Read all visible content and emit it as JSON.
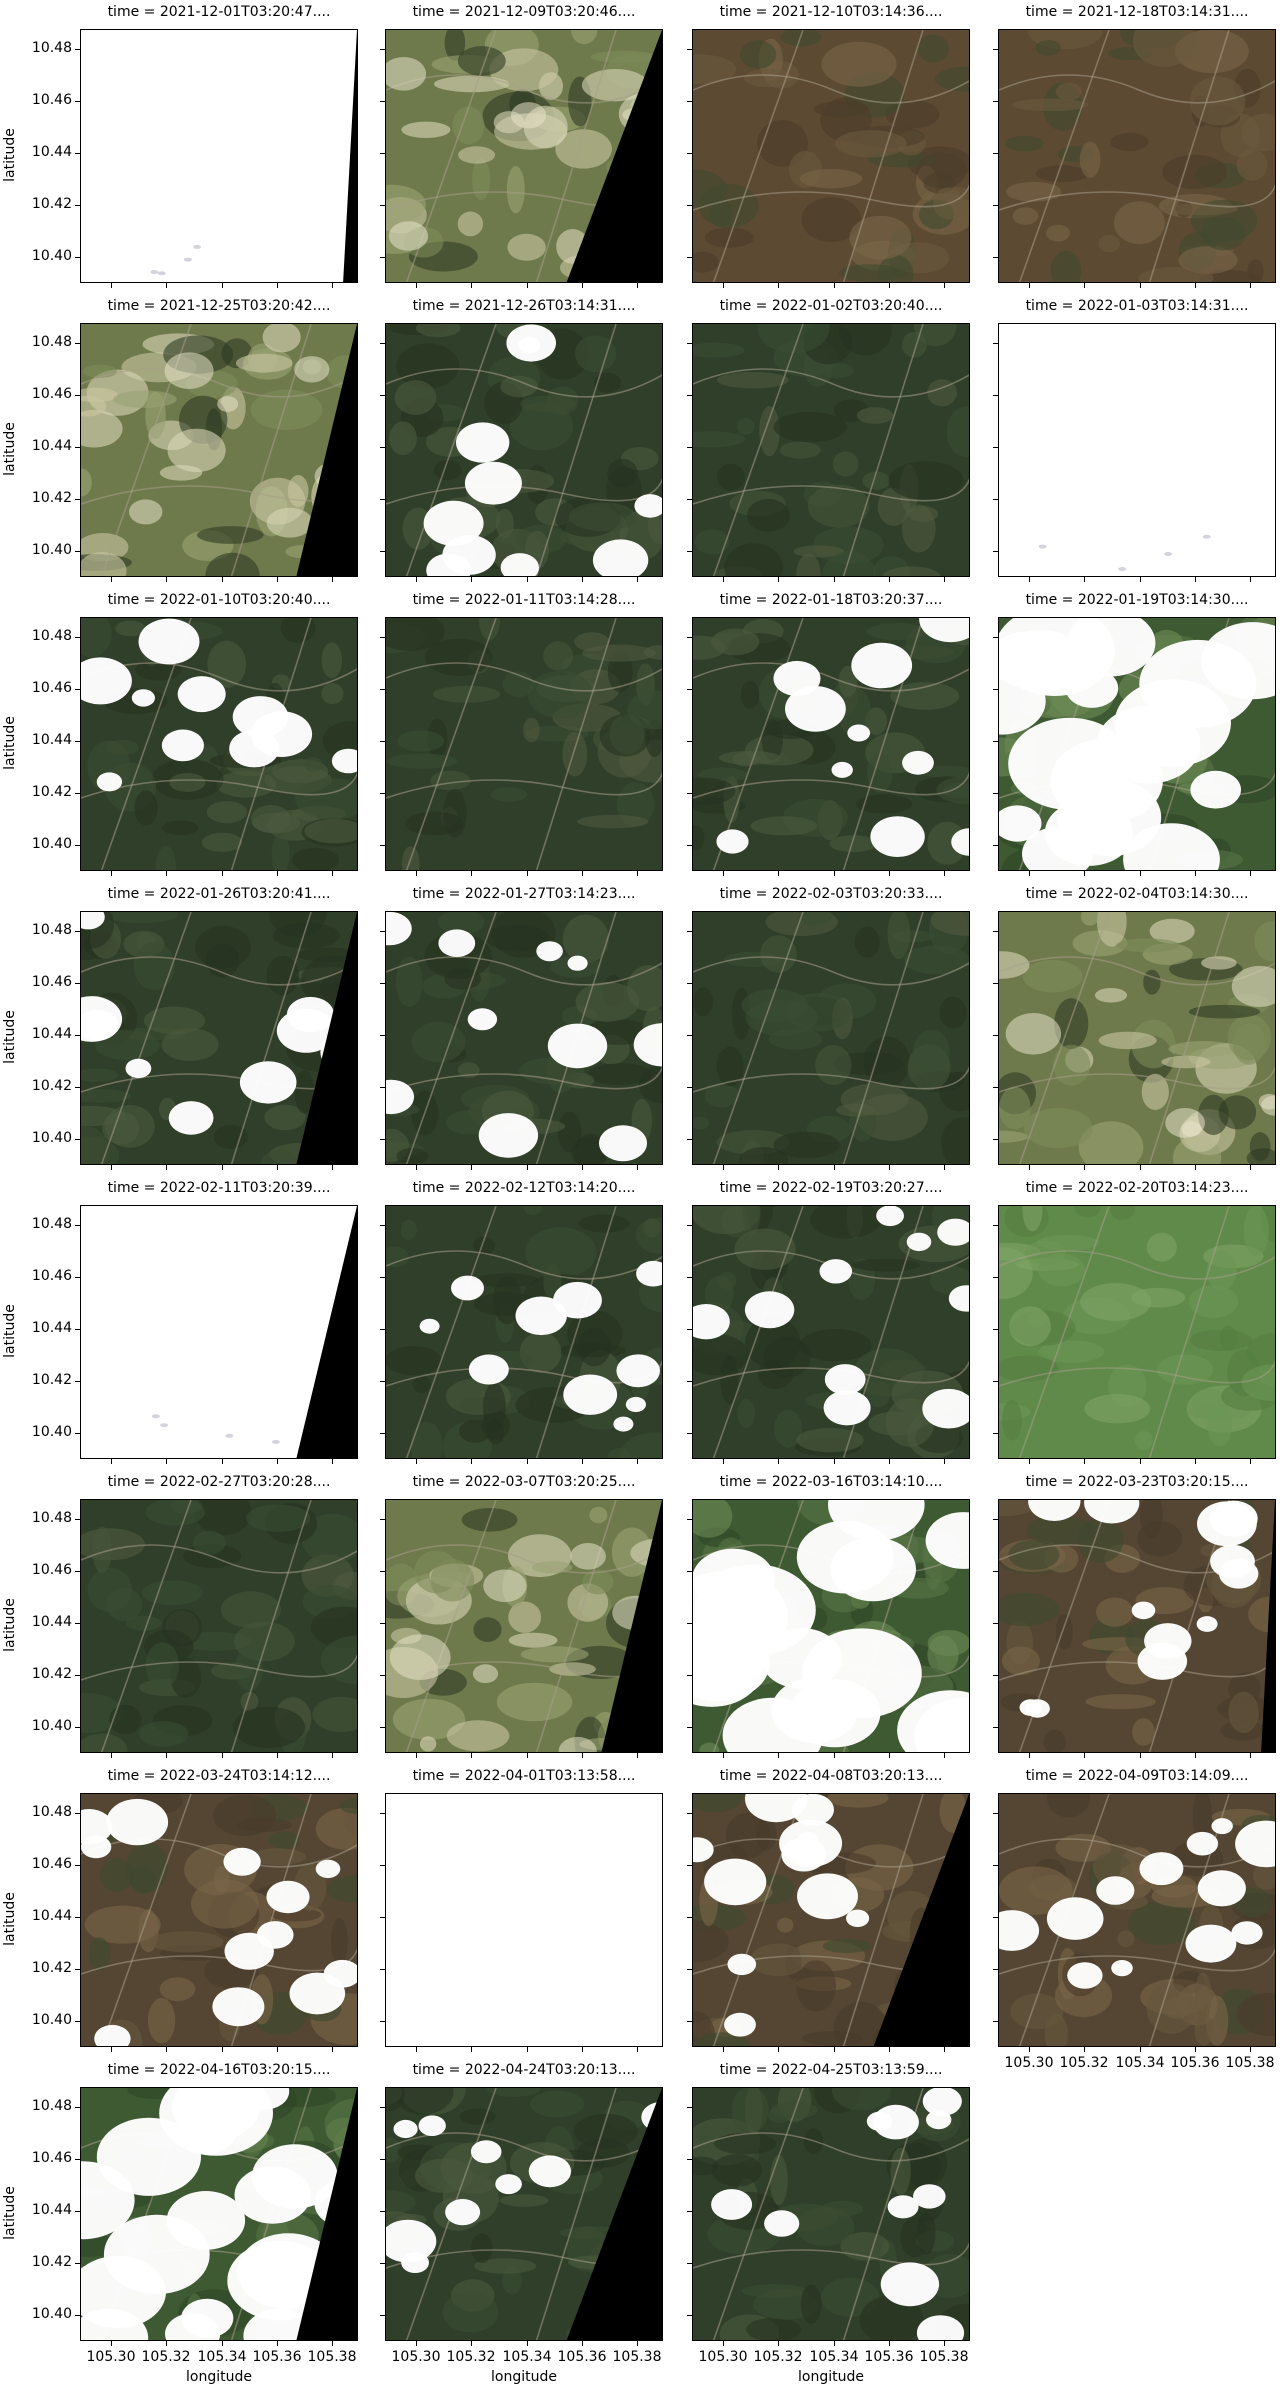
{
  "axes": {
    "xlabel": "longitude",
    "ylabel": "latitude",
    "yticks": [
      "10.48",
      "10.46",
      "10.44",
      "10.42",
      "10.40"
    ],
    "xticks": [
      "105.30",
      "105.32",
      "105.34",
      "105.36",
      "105.38"
    ]
  },
  "panels": [
    {
      "title": "time = 2021-12-01T03:20:47....",
      "scene": "white-mostly",
      "nodata_right": "thin"
    },
    {
      "title": "time = 2021-12-09T03:20:46....",
      "scene": "haze",
      "nodata_right": "wide"
    },
    {
      "title": "time = 2021-12-10T03:14:36....",
      "scene": "brown",
      "nodata_right": "none"
    },
    {
      "title": "time = 2021-12-18T03:14:31....",
      "scene": "brown",
      "nodata_right": "none"
    },
    {
      "title": "time = 2021-12-25T03:20:42....",
      "scene": "haze",
      "nodata_right": "medium"
    },
    {
      "title": "time = 2021-12-26T03:14:31....",
      "scene": "cloudy-green",
      "nodata_right": "none"
    },
    {
      "title": "time = 2022-01-02T03:20:40....",
      "scene": "green",
      "nodata_right": "none"
    },
    {
      "title": "time = 2022-01-03T03:14:31....",
      "scene": "white-mostly",
      "nodata_right": "none"
    },
    {
      "title": "time = 2022-01-10T03:20:40....",
      "scene": "cloudy-green",
      "nodata_right": "none"
    },
    {
      "title": "time = 2022-01-11T03:14:28....",
      "scene": "green",
      "nodata_right": "none"
    },
    {
      "title": "time = 2022-01-18T03:20:37....",
      "scene": "cloudy-green",
      "nodata_right": "none"
    },
    {
      "title": "time = 2022-01-19T03:14:30....",
      "scene": "cloudy-heavy",
      "nodata_right": "none"
    },
    {
      "title": "time = 2022-01-26T03:20:41....",
      "scene": "cloudy-green",
      "nodata_right": "medium"
    },
    {
      "title": "time = 2022-01-27T03:14:23....",
      "scene": "cloudy-green",
      "nodata_right": "none"
    },
    {
      "title": "time = 2022-02-03T03:20:33....",
      "scene": "green",
      "nodata_right": "none"
    },
    {
      "title": "time = 2022-02-04T03:14:30....",
      "scene": "haze",
      "nodata_right": "none"
    },
    {
      "title": "time = 2022-02-11T03:20:39....",
      "scene": "white-mostly",
      "nodata_right": "medium"
    },
    {
      "title": "time = 2022-02-12T03:14:20....",
      "scene": "cloudy-green",
      "nodata_right": "none"
    },
    {
      "title": "time = 2022-02-19T03:20:27....",
      "scene": "cloudy-green",
      "nodata_right": "none"
    },
    {
      "title": "time = 2022-02-20T03:14:23....",
      "scene": "light-green",
      "nodata_right": "none"
    },
    {
      "title": "time = 2022-02-27T03:20:28....",
      "scene": "green",
      "nodata_right": "none"
    },
    {
      "title": "time = 2022-03-07T03:20:25....",
      "scene": "haze",
      "nodata_right": "medium"
    },
    {
      "title": "time = 2022-03-16T03:14:10....",
      "scene": "cloudy-heavy",
      "nodata_right": "none"
    },
    {
      "title": "time = 2022-03-23T03:20:15....",
      "scene": "cloudy-brown",
      "nodata_right": "thin"
    },
    {
      "title": "time = 2022-03-24T03:14:12....",
      "scene": "cloudy-brown",
      "nodata_right": "none"
    },
    {
      "title": "time = 2022-04-01T03:13:58....",
      "scene": "white-full",
      "nodata_right": "none"
    },
    {
      "title": "time = 2022-04-08T03:20:13....",
      "scene": "cloudy-brown",
      "nodata_right": "wide"
    },
    {
      "title": "time = 2022-04-09T03:14:09....",
      "scene": "cloudy-brown",
      "nodata_right": "none"
    },
    {
      "title": "time = 2022-04-16T03:20:15....",
      "scene": "cloudy-heavy",
      "nodata_right": "medium"
    },
    {
      "title": "time = 2022-04-24T03:20:13....",
      "scene": "cloudy-green",
      "nodata_right": "wide"
    },
    {
      "title": "time = 2022-04-25T03:13:59....",
      "scene": "cloudy-green",
      "nodata_right": "none"
    }
  ]
}
